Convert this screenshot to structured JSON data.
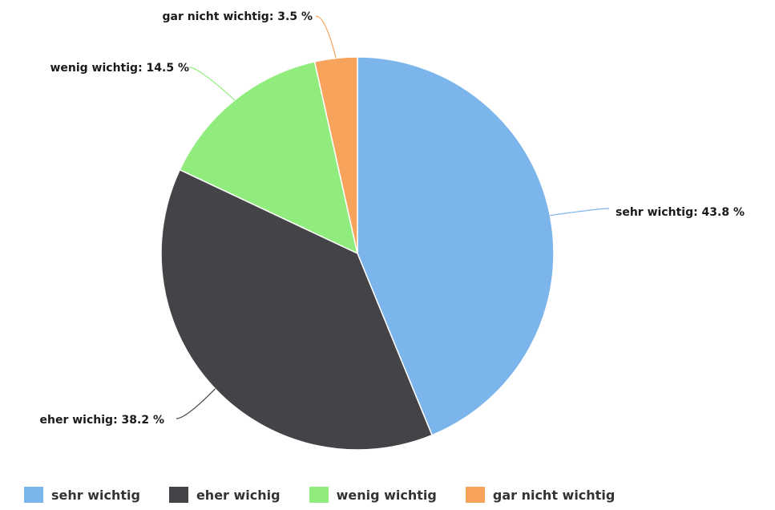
{
  "chart_data": {
    "type": "pie",
    "title": "",
    "categories": [
      "sehr wichtig",
      "eher wichig",
      "wenig wichtig",
      "gar nicht wichtig"
    ],
    "values": [
      43.8,
      38.2,
      14.5,
      3.5
    ],
    "unit": "%",
    "labels": [
      "sehr wichtig: 43.8 %",
      "eher wichig: 38.2 %",
      "wenig wichtig: 14.5 %",
      "gar nicht wichtig: 3.5 %"
    ],
    "colors": [
      "#7cb5ec",
      "#434348",
      "#90ed7d",
      "#f7a35c"
    ],
    "start": "12 o'clock, clockwise",
    "legend": "bottom"
  }
}
